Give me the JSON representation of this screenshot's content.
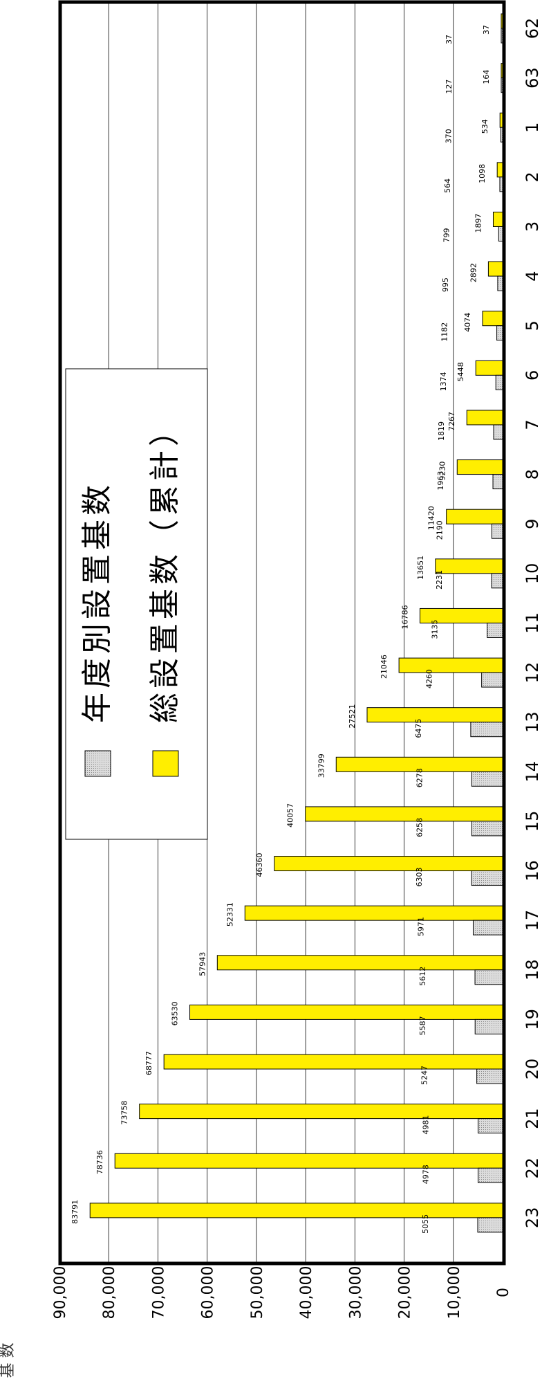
{
  "chart_data": {
    "type": "bar",
    "orientation": "horizontal",
    "ylabel": "基 数",
    "xlim": [
      0,
      90000
    ],
    "ticks": [
      "0",
      "10,000",
      "20,000",
      "30,000",
      "40,000",
      "50,000",
      "60,000",
      "70,000",
      "80,000",
      "90,000"
    ],
    "grid": true,
    "legend_position": "upper-left",
    "categories": [
      "62",
      "63",
      "1",
      "2",
      "3",
      "4",
      "5",
      "6",
      "7",
      "8",
      "9",
      "10",
      "11",
      "12",
      "13",
      "14",
      "15",
      "16",
      "17",
      "18",
      "19",
      "20",
      "21",
      "22",
      "23"
    ],
    "series": [
      {
        "name": "年度別設置基数",
        "color": "#c8c8c8",
        "values": [
          37,
          127,
          370,
          564,
          799,
          995,
          1182,
          1374,
          1819,
          1963,
          2190,
          2231,
          3135,
          4260,
          6475,
          6278,
          6258,
          6303,
          5971,
          5612,
          5587,
          5247,
          4981,
          4978,
          5055
        ]
      },
      {
        "name": "総設置基数（累計）",
        "color": "#ffee00",
        "values": [
          37,
          164,
          534,
          1098,
          1897,
          2892,
          4074,
          5448,
          7267,
          9230,
          11420,
          13651,
          16786,
          21046,
          27521,
          33799,
          40057,
          46360,
          52331,
          57943,
          63530,
          68777,
          73758,
          78736,
          83791
        ]
      }
    ]
  }
}
